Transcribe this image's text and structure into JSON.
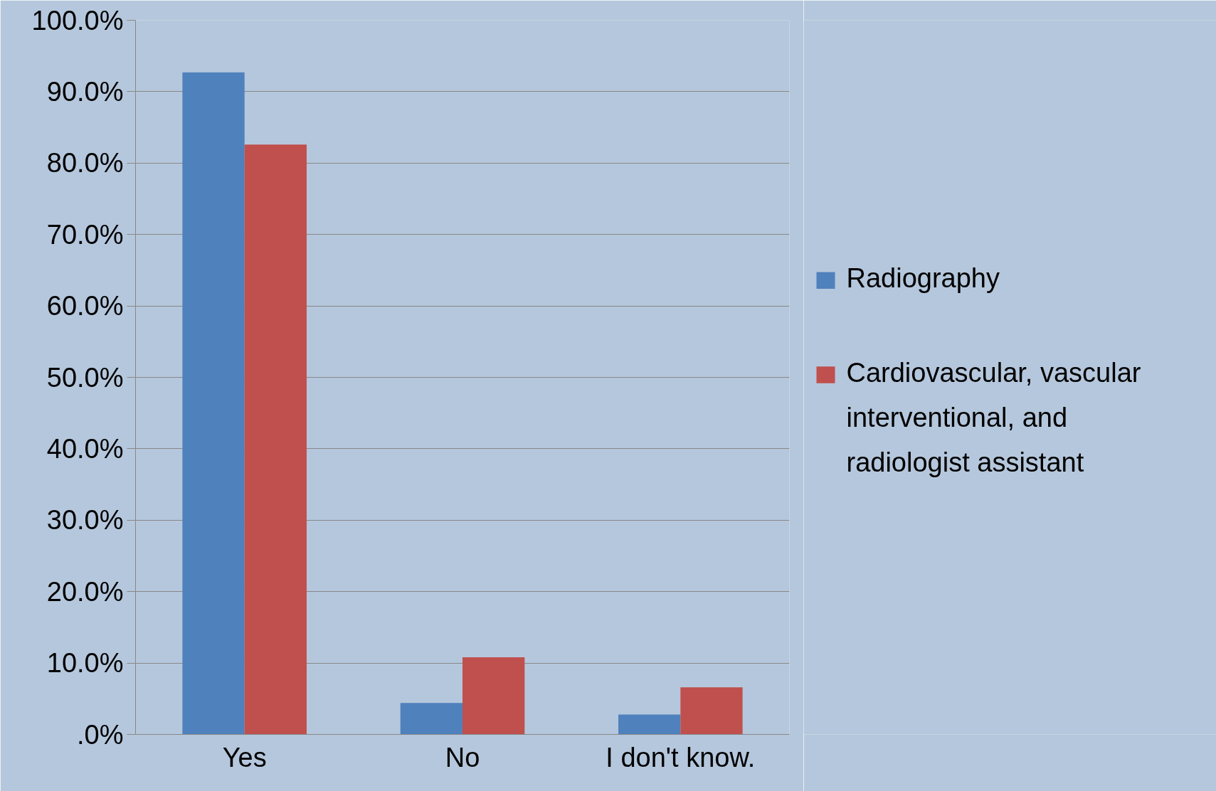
{
  "chart_data": {
    "type": "bar",
    "categories": [
      "Yes",
      "No",
      "I don't know."
    ],
    "series": [
      {
        "name": "Radiography",
        "color": "#4f81bd",
        "values": [
          92.7,
          4.4,
          2.8
        ]
      },
      {
        "name": "Cardiovascular, vascular interventional, and radiologist assistant",
        "color": "#c0504d",
        "values": [
          82.6,
          10.8,
          6.6
        ]
      }
    ],
    "ylim": [
      0,
      100
    ],
    "yticks": [
      {
        "value": 0,
        "label": ".0%"
      },
      {
        "value": 10,
        "label": "10.0%"
      },
      {
        "value": 20,
        "label": "20.0%"
      },
      {
        "value": 30,
        "label": "30.0%"
      },
      {
        "value": 40,
        "label": "40.0%"
      },
      {
        "value": 50,
        "label": "50.0%"
      },
      {
        "value": 60,
        "label": "60.0%"
      },
      {
        "value": 70,
        "label": "70.0%"
      },
      {
        "value": 80,
        "label": "80.0%"
      },
      {
        "value": 90,
        "label": "90.0%"
      },
      {
        "value": 100,
        "label": "100.0%"
      }
    ],
    "grid": "y",
    "legend": "right"
  }
}
